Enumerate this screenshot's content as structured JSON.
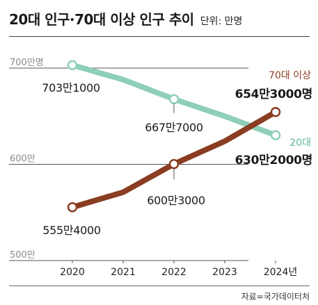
{
  "title": "20대 인구·70대 이상 인구 추이",
  "unit_label": "단위: 만명",
  "source": "자료=국가데이터처",
  "colors": {
    "teal": "#8ecfb7",
    "brown": "#8a3d22",
    "teal_text": "#5cb597",
    "brown_text": "#8a3d22",
    "grid": "#555555"
  },
  "chart_data": {
    "type": "line",
    "categories": [
      "2020",
      "2021",
      "2022",
      "2023",
      "2024년"
    ],
    "x": [
      2020,
      2021,
      2022,
      2023,
      2024
    ],
    "ylim": [
      500,
      700
    ],
    "y_ticks": [
      {
        "value": 700,
        "label": "700만명"
      },
      {
        "value": 600,
        "label": "600만"
      },
      {
        "value": 500,
        "label": "500만"
      }
    ],
    "grid": true,
    "series": [
      {
        "name": "20대",
        "color": "#8ecfb7",
        "values": [
          703.1,
          688.0,
          667.7,
          650.0,
          630.2
        ],
        "point_labels": [
          {
            "index": 0,
            "text": "703만1000",
            "bold": false
          },
          {
            "index": 2,
            "text": "667만7000",
            "bold": false
          },
          {
            "index": 4,
            "text": "630만2000명",
            "bold": true
          }
        ],
        "markers": [
          0,
          2,
          4
        ]
      },
      {
        "name": "70대 이상",
        "color": "#8a3d22",
        "values": [
          555.4,
          571.0,
          600.3,
          624.0,
          654.3
        ],
        "point_labels": [
          {
            "index": 0,
            "text": "555만4000",
            "bold": false
          },
          {
            "index": 2,
            "text": "600만3000",
            "bold": false
          },
          {
            "index": 4,
            "text": "654만3000명",
            "bold": true
          }
        ],
        "markers": [
          0,
          2,
          4
        ]
      }
    ]
  }
}
